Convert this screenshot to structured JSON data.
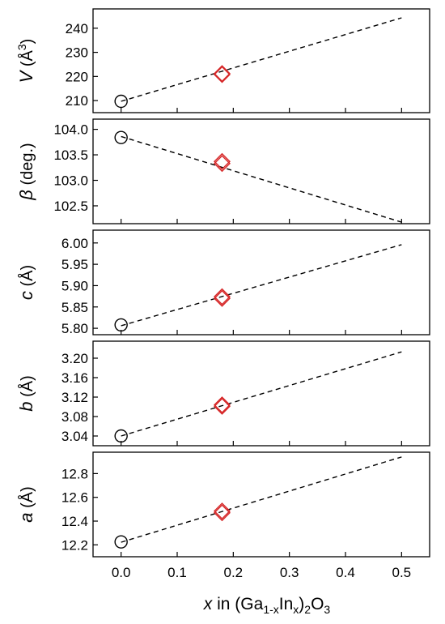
{
  "chart_data": [
    {
      "type": "scatter",
      "ylabel_symbol": "V",
      "ylabel_unit_before": " (Å",
      "ylabel_unit_sup": "3",
      "ylabel_unit_after": ")",
      "ylim": [
        205,
        248
      ],
      "yticks": [
        210,
        220,
        230,
        240
      ],
      "ytick_labels": [
        "210",
        "220",
        "230",
        "240"
      ],
      "points": [
        {
          "x": 0.0,
          "y": 209.7,
          "marker": "circle",
          "color": "#000000"
        },
        {
          "x": 0.18,
          "y": 221.2,
          "marker": "diamond",
          "color": "#d62728"
        },
        {
          "x": 0.18,
          "y": 220.8,
          "marker": "diamond",
          "color": "#d62728"
        }
      ],
      "fit_line": {
        "x": [
          0.0,
          0.5
        ],
        "y": [
          209.7,
          244.3
        ]
      }
    },
    {
      "type": "scatter",
      "ylabel_symbol": "β",
      "ylabel_unit_before": " (deg.)",
      "ylabel_unit_sup": "",
      "ylabel_unit_after": "",
      "ylim": [
        102.15,
        104.2
      ],
      "yticks": [
        102.5,
        103.0,
        103.5,
        104.0
      ],
      "ytick_labels": [
        "102.5",
        "103.0",
        "103.5",
        "104.0"
      ],
      "points": [
        {
          "x": 0.0,
          "y": 103.84,
          "marker": "circle",
          "color": "#000000"
        },
        {
          "x": 0.18,
          "y": 103.37,
          "marker": "diamond",
          "color": "#d62728"
        },
        {
          "x": 0.18,
          "y": 103.33,
          "marker": "diamond",
          "color": "#d62728"
        }
      ],
      "fit_line": {
        "x": [
          0.0,
          0.5
        ],
        "y": [
          103.86,
          102.18
        ]
      }
    },
    {
      "type": "scatter",
      "ylabel_symbol": "c",
      "ylabel_unit_before": " (Å)",
      "ylabel_unit_sup": "",
      "ylabel_unit_after": "",
      "ylim": [
        5.785,
        6.03
      ],
      "yticks": [
        5.8,
        5.85,
        5.9,
        5.95,
        6.0
      ],
      "ytick_labels": [
        "5.80",
        "5.85",
        "5.90",
        "5.95",
        "6.00"
      ],
      "points": [
        {
          "x": 0.0,
          "y": 5.808,
          "marker": "circle",
          "color": "#000000"
        },
        {
          "x": 0.18,
          "y": 5.874,
          "marker": "diamond",
          "color": "#d62728"
        },
        {
          "x": 0.18,
          "y": 5.87,
          "marker": "diamond",
          "color": "#d62728"
        }
      ],
      "fit_line": {
        "x": [
          0.0,
          0.5
        ],
        "y": [
          5.806,
          5.996
        ]
      }
    },
    {
      "type": "scatter",
      "ylabel_symbol": "b",
      "ylabel_unit_before": " (Å)",
      "ylabel_unit_sup": "",
      "ylabel_unit_after": "",
      "ylim": [
        3.02,
        3.235
      ],
      "yticks": [
        3.04,
        3.08,
        3.12,
        3.16,
        3.2
      ],
      "ytick_labels": [
        "3.04",
        "3.08",
        "3.12",
        "3.16",
        "3.20"
      ],
      "points": [
        {
          "x": 0.0,
          "y": 3.04,
          "marker": "circle",
          "color": "#000000"
        },
        {
          "x": 0.18,
          "y": 3.104,
          "marker": "diamond",
          "color": "#d62728"
        },
        {
          "x": 0.18,
          "y": 3.101,
          "marker": "diamond",
          "color": "#d62728"
        }
      ],
      "fit_line": {
        "x": [
          0.0,
          0.5
        ],
        "y": [
          3.04,
          3.213
        ]
      }
    },
    {
      "type": "scatter",
      "ylabel_symbol": "a",
      "ylabel_unit_before": " (Å)",
      "ylabel_unit_sup": "",
      "ylabel_unit_after": "",
      "ylim": [
        12.1,
        12.98
      ],
      "yticks": [
        12.2,
        12.4,
        12.6,
        12.8
      ],
      "ytick_labels": [
        "12.2",
        "12.4",
        "12.6",
        "12.8"
      ],
      "points": [
        {
          "x": 0.0,
          "y": 12.225,
          "marker": "circle",
          "color": "#000000"
        },
        {
          "x": 0.18,
          "y": 12.485,
          "marker": "diamond",
          "color": "#d62728"
        },
        {
          "x": 0.18,
          "y": 12.47,
          "marker": "diamond",
          "color": "#d62728"
        }
      ],
      "fit_line": {
        "x": [
          0.0,
          0.5
        ],
        "y": [
          12.222,
          12.94
        ]
      }
    }
  ],
  "x_axis": {
    "xlim": [
      -0.05,
      0.55
    ],
    "xticks": [
      0.0,
      0.1,
      0.2,
      0.3,
      0.4,
      0.5
    ],
    "xtick_labels": [
      "0.0",
      "0.1",
      "0.2",
      "0.3",
      "0.4",
      "0.5"
    ],
    "label_var": "x",
    "label_in": " in (Ga",
    "label_sub1": "1-x",
    "label_mid": "In",
    "label_sub2": "x",
    "label_close": ")",
    "label_sub3": "2",
    "label_o": "O",
    "label_sub4": "3"
  }
}
